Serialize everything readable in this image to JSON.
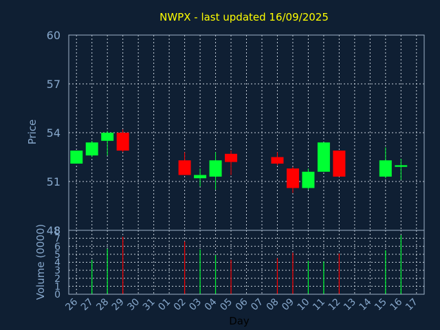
{
  "chart_data": {
    "type": "candlestick",
    "title": "NWPX - last updated 16/09/2025",
    "xlabel": "Day",
    "x_ticks": [
      "26",
      "27",
      "28",
      "29",
      "30",
      "31",
      "01",
      "02",
      "03",
      "04",
      "05",
      "06",
      "07",
      "08",
      "09",
      "10",
      "11",
      "12",
      "13",
      "14",
      "15",
      "16",
      "17"
    ],
    "price": {
      "ylabel": "Price",
      "ylim": [
        48,
        60
      ],
      "yticks": [
        48,
        51,
        54,
        57,
        60
      ],
      "grid": true,
      "candles": [
        {
          "day": "26",
          "open": 52.1,
          "close": 52.9,
          "high": 52.9,
          "low": 52.1
        },
        {
          "day": "27",
          "open": 52.6,
          "close": 53.4,
          "high": 53.5,
          "low": 52.5
        },
        {
          "day": "28",
          "open": 53.5,
          "close": 54.0,
          "high": 54.1,
          "low": 52.6
        },
        {
          "day": "29",
          "open": 54.0,
          "close": 52.9,
          "high": 54.2,
          "low": 52.8
        },
        {
          "day": "02",
          "open": 52.3,
          "close": 51.4,
          "high": 52.8,
          "low": 51.4
        },
        {
          "day": "03",
          "open": 51.2,
          "close": 51.4,
          "high": 51.8,
          "low": 50.7
        },
        {
          "day": "04",
          "open": 51.3,
          "close": 52.3,
          "high": 52.8,
          "low": 50.5
        },
        {
          "day": "05",
          "open": 52.7,
          "close": 52.2,
          "high": 52.9,
          "low": 51.4
        },
        {
          "day": "08",
          "open": 52.5,
          "close": 52.1,
          "high": 52.8,
          "low": 52.0
        },
        {
          "day": "09",
          "open": 51.8,
          "close": 50.6,
          "high": 51.9,
          "low": 50.3
        },
        {
          "day": "10",
          "open": 50.6,
          "close": 51.6,
          "high": 51.8,
          "low": 50.5
        },
        {
          "day": "11",
          "open": 51.6,
          "close": 53.4,
          "high": 53.4,
          "low": 51.6
        },
        {
          "day": "12",
          "open": 52.9,
          "close": 51.3,
          "high": 52.9,
          "low": 51.3
        },
        {
          "day": "15",
          "open": 51.3,
          "close": 52.3,
          "high": 53.1,
          "low": 51.2
        },
        {
          "day": "16",
          "open": 51.9,
          "close": 52.0,
          "high": 52.4,
          "low": 51.1
        }
      ]
    },
    "volume": {
      "ylabel": "Volume (0000)",
      "ylim": [
        0,
        8
      ],
      "yticks": [
        0,
        1,
        2,
        3,
        4,
        5,
        6,
        7,
        8
      ],
      "bars": [
        {
          "day": "26",
          "value": 0
        },
        {
          "day": "27",
          "value": 4.3
        },
        {
          "day": "28",
          "value": 5.7
        },
        {
          "day": "29",
          "value": 7.2
        },
        {
          "day": "02",
          "value": 6.6
        },
        {
          "day": "03",
          "value": 5.6
        },
        {
          "day": "04",
          "value": 4.9
        },
        {
          "day": "05",
          "value": 4.3
        },
        {
          "day": "08",
          "value": 4.5
        },
        {
          "day": "09",
          "value": 5.2
        },
        {
          "day": "10",
          "value": 4.2
        },
        {
          "day": "11",
          "value": 4.1
        },
        {
          "day": "12",
          "value": 5.1
        },
        {
          "day": "15",
          "value": 5.5
        },
        {
          "day": "16",
          "value": 7.4
        }
      ]
    },
    "colors": {
      "up": "#00ff33",
      "down": "#ff0000",
      "background": "#0f1f33",
      "title": "#ffff00",
      "axis_text": "#87a8cc",
      "grid": "#c8d2dc",
      "frame": "#9fb3c8"
    }
  }
}
